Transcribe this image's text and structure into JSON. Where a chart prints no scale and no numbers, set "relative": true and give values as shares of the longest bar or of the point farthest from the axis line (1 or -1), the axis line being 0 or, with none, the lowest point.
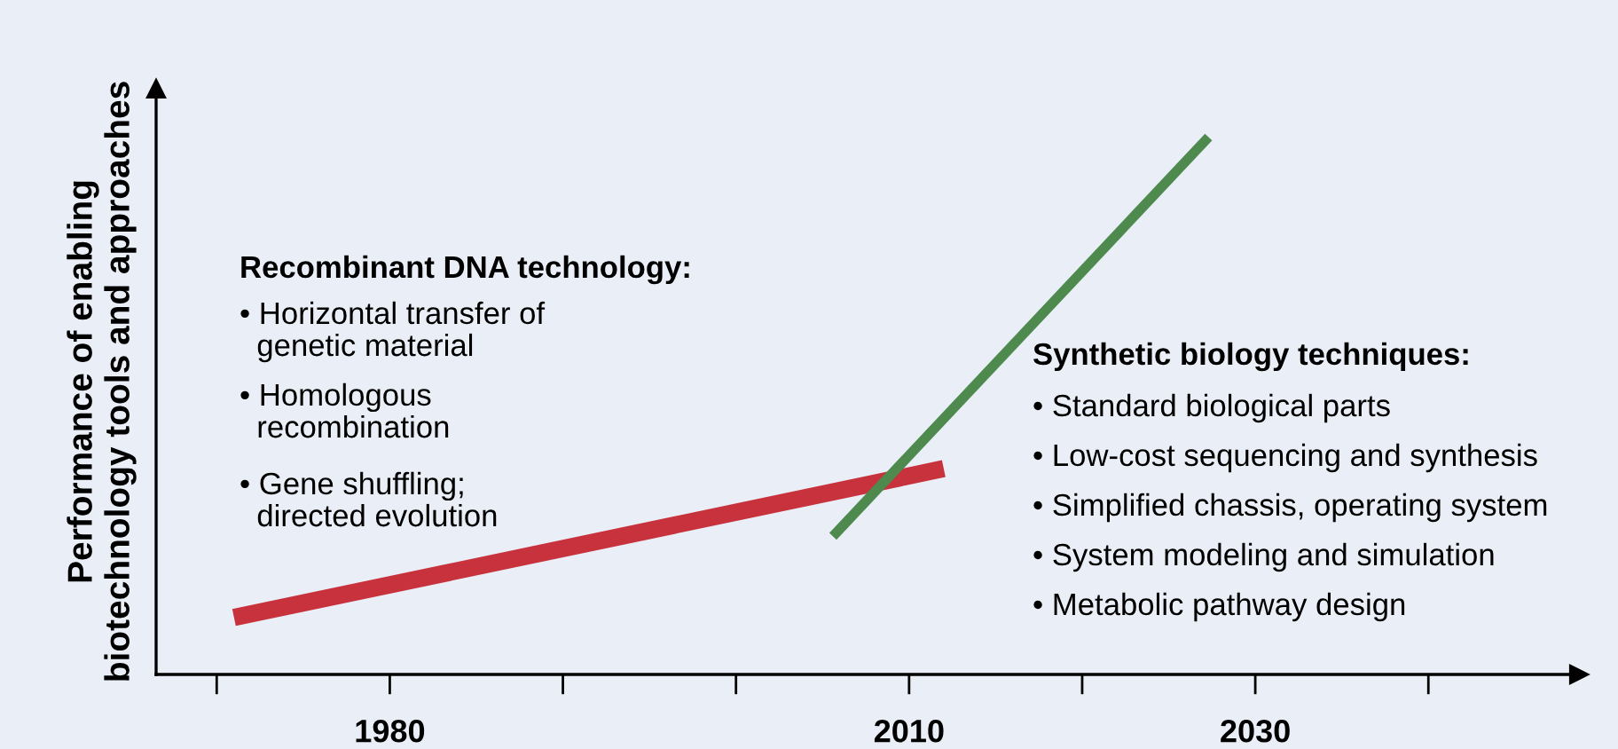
{
  "chart_data": {
    "type": "line",
    "relative": true,
    "ylabel": "Performance of enabling\nbiotechnology tools and approaches",
    "xlim": [
      1966.5,
      2048.7
    ],
    "xticks": [
      {
        "value": 1970,
        "label": null
      },
      1980,
      {
        "value": 1990,
        "label": null
      },
      {
        "value": 2000,
        "label": null
      },
      2010,
      {
        "value": 2020,
        "label": null
      },
      2030,
      {
        "value": 2040,
        "label": null
      }
    ],
    "tick_labels": "x",
    "grid": false,
    "legend": false,
    "marker": "none",
    "line_style": "solid",
    "series": [
      {
        "color": "#c8323c",
        "x": [
          1971,
          2012
        ],
        "values": [
          0.106,
          0.383
        ]
      },
      {
        "color": "#4e8a4e",
        "x": [
          2005.6,
          2027.3
        ],
        "values": [
          0.257,
          1
        ]
      }
    ],
    "annotations": [
      "Recombinant DNA technology:",
      "• Horizontal transfer of\n  genetic material",
      "• Homologous\n  recombination",
      "• Gene shuffling;\n  directed evolution",
      "Synthetic biology techniques:",
      "• Standard biological parts",
      "• Low-cost sequencing and synthesis",
      "• Simplified chassis, operating system",
      "• System modeling and simulation",
      "• Metabolic pathway design"
    ]
  }
}
